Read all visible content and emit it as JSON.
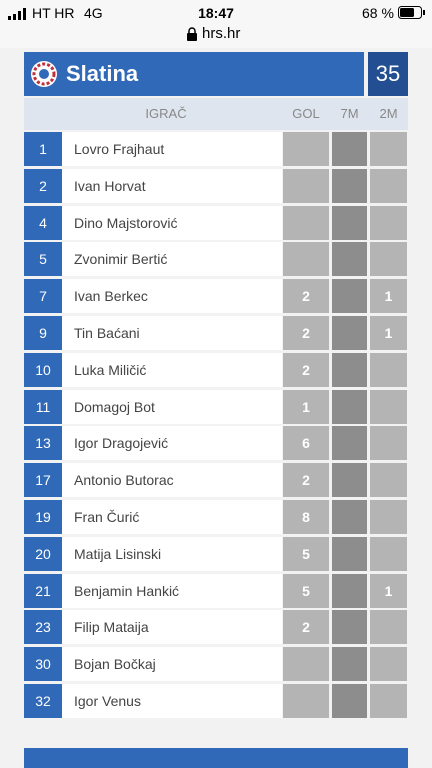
{
  "status": {
    "carrier": "HT HR",
    "network": "4G",
    "time": "18:47",
    "battery": "68 %",
    "url": "hrs.hr"
  },
  "team": {
    "name": "Slatina",
    "score": 35
  },
  "table": {
    "headers": [
      "IGRAČ",
      "GOL",
      "7M",
      "2M"
    ],
    "rows": [
      [
        1,
        "Lovro Frajhaut",
        null,
        null,
        null
      ],
      [
        2,
        "Ivan Horvat",
        null,
        null,
        null
      ],
      [
        4,
        "Dino Majstorović",
        null,
        null,
        null
      ],
      [
        5,
        "Zvonimir Bertić",
        null,
        null,
        null
      ],
      [
        7,
        "Ivan Berkec",
        2,
        null,
        1
      ],
      [
        9,
        "Tin Baćani",
        2,
        null,
        1
      ],
      [
        10,
        "Luka Miličić",
        2,
        null,
        null
      ],
      [
        11,
        "Domagoj Bot",
        1,
        null,
        null
      ],
      [
        13,
        "Igor Dragojević",
        6,
        null,
        null
      ],
      [
        17,
        "Antonio Butorac",
        2,
        null,
        null
      ],
      [
        19,
        "Fran Čurić",
        8,
        null,
        null
      ],
      [
        20,
        "Matija Lisinski",
        5,
        null,
        null
      ],
      [
        21,
        "Benjamin Hankić",
        5,
        null,
        1
      ],
      [
        23,
        "Filip Mataija",
        2,
        null,
        null
      ],
      [
        30,
        "Bojan Bočkaj",
        null,
        null,
        null
      ],
      [
        32,
        "Igor Venus",
        null,
        null,
        null
      ]
    ]
  }
}
